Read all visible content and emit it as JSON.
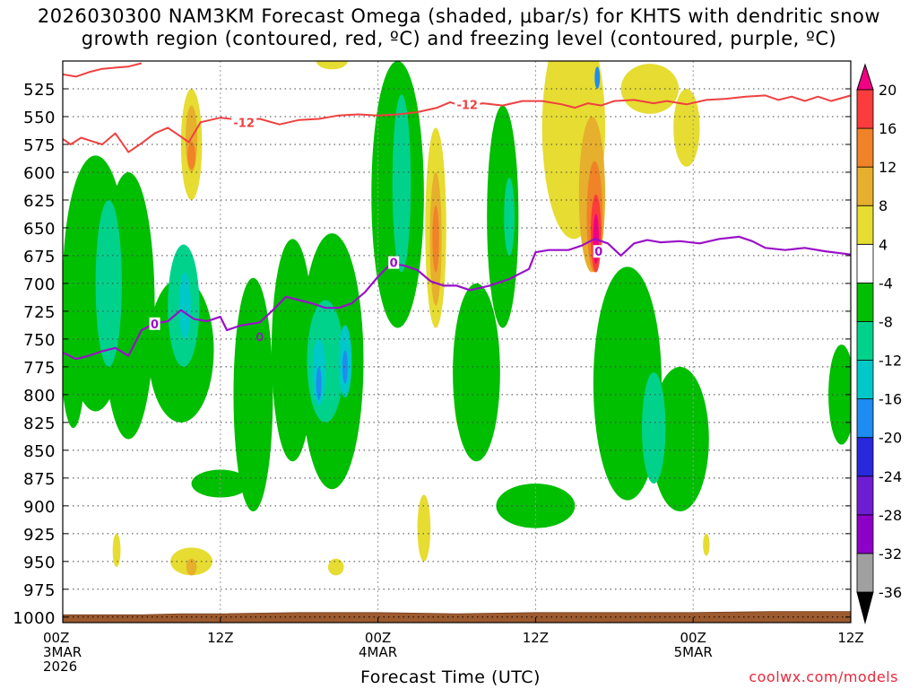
{
  "title": {
    "line1": "2026030300 NAM3KM Forecast Omega (shaded, μbar/s) for KHTS with dendritic snow",
    "line2": "growth region (contoured, red, ºC) and freezing level (contoured, purple, ºC)"
  },
  "credit": "coolwx.com/models",
  "chart_data": {
    "type": "heatmap",
    "xlabel": "Forecast Time (UTC)",
    "ylabel": "",
    "xlim_hours": [
      0,
      60
    ],
    "ylim_hPa": [
      500,
      1005
    ],
    "y_inverted": true,
    "grid": true,
    "y_ticks": [
      525,
      550,
      575,
      600,
      625,
      650,
      675,
      700,
      725,
      750,
      775,
      800,
      825,
      850,
      875,
      900,
      925,
      950,
      975,
      1000
    ],
    "x_ticks": [
      {
        "h": 0,
        "lines": [
          "00Z",
          "3MAR",
          "2026"
        ]
      },
      {
        "h": 12,
        "lines": [
          "12Z"
        ]
      },
      {
        "h": 24,
        "lines": [
          "00Z",
          "4MAR"
        ]
      },
      {
        "h": 36,
        "lines": [
          "12Z"
        ]
      },
      {
        "h": 48,
        "lines": [
          "00Z",
          "5MAR"
        ]
      },
      {
        "h": 60,
        "lines": [
          "12Z"
        ]
      }
    ],
    "colorbar": {
      "levels": [
        -36,
        -32,
        -28,
        -24,
        -20,
        -16,
        -12,
        -8,
        -4,
        4,
        8,
        12,
        16,
        20
      ],
      "colors": [
        "#000000",
        "#a0a0a0",
        "#8c00c8",
        "#6e1ed2",
        "#2828dc",
        "#1e8cf0",
        "#00c8c8",
        "#00d28c",
        "#00be00",
        "#ffffff",
        "#e6dc32",
        "#e6af2d",
        "#f08228",
        "#fa3c3c",
        "#f00082"
      ],
      "triangles": true
    },
    "omega_regions": [
      {
        "value": 4,
        "h": 9.8,
        "p": 575,
        "dh": 0.8,
        "dp": 100
      },
      {
        "value": 8,
        "h": 9.8,
        "p": 570,
        "dh": 0.45,
        "dp": 60
      },
      {
        "value": 12,
        "h": 9.8,
        "p": 585,
        "dh": 0.3,
        "dp": 25
      },
      {
        "value": 4,
        "h": 15.3,
        "p": 780,
        "dh": 0.5,
        "dp": 55
      },
      {
        "value": 8,
        "h": 15.3,
        "p": 785,
        "dh": 0.25,
        "dp": 30
      },
      {
        "value": 4,
        "h": 20.5,
        "p": 500,
        "dh": 1.2,
        "dp": 15
      },
      {
        "value": 4,
        "h": 28.4,
        "p": 650,
        "dh": 0.8,
        "dp": 180
      },
      {
        "value": 8,
        "h": 28.4,
        "p": 660,
        "dh": 0.45,
        "dp": 120
      },
      {
        "value": 12,
        "h": 28.4,
        "p": 660,
        "dh": 0.25,
        "dp": 60
      },
      {
        "value": 4,
        "h": 30.3,
        "p": 800,
        "dh": 0.5,
        "dp": 65
      },
      {
        "value": 8,
        "h": 30.3,
        "p": 810,
        "dh": 0.25,
        "dp": 35
      },
      {
        "value": 4,
        "h": 27.5,
        "p": 920,
        "dh": 0.5,
        "dp": 60
      },
      {
        "value": 4,
        "h": 38.9,
        "p": 560,
        "dh": 2.4,
        "dp": 200
      },
      {
        "value": 8,
        "h": 40.3,
        "p": 620,
        "dh": 1.0,
        "dp": 140
      },
      {
        "value": 12,
        "h": 40.5,
        "p": 640,
        "dh": 0.6,
        "dp": 100
      },
      {
        "value": 16,
        "h": 40.6,
        "p": 655,
        "dh": 0.4,
        "dp": 70
      },
      {
        "value": 20,
        "h": 40.6,
        "p": 660,
        "dh": 0.22,
        "dp": 45
      },
      {
        "value": 4,
        "h": 44.7,
        "p": 525,
        "dh": 2.2,
        "dp": 45
      },
      {
        "value": 4,
        "h": 47.5,
        "p": 560,
        "dh": 1.0,
        "dp": 70
      },
      {
        "value": 4,
        "h": 4.1,
        "p": 940,
        "dh": 0.3,
        "dp": 30
      },
      {
        "value": 4,
        "h": 9.8,
        "p": 950,
        "dh": 1.6,
        "dp": 25
      },
      {
        "value": 8,
        "h": 9.8,
        "p": 955,
        "dh": 0.4,
        "dp": 15
      },
      {
        "value": 4,
        "h": 20.8,
        "p": 955,
        "dh": 0.6,
        "dp": 15
      },
      {
        "value": 4,
        "h": 49.0,
        "p": 935,
        "dh": 0.25,
        "dp": 20
      },
      {
        "value": -4,
        "h": 2.5,
        "p": 700,
        "dh": 2.5,
        "dp": 230
      },
      {
        "value": -4,
        "h": 5.0,
        "p": 720,
        "dh": 2.0,
        "dp": 240
      },
      {
        "value": -4,
        "h": 9.0,
        "p": 760,
        "dh": 2.5,
        "dp": 130
      },
      {
        "value": -4,
        "h": 0.8,
        "p": 750,
        "dh": 1.0,
        "dp": 160
      },
      {
        "value": -4,
        "h": 14.5,
        "p": 800,
        "dh": 1.5,
        "dp": 210
      },
      {
        "value": -4,
        "h": 17.5,
        "p": 760,
        "dh": 1.6,
        "dp": 200
      },
      {
        "value": -4,
        "h": 20.5,
        "p": 770,
        "dh": 2.4,
        "dp": 230
      },
      {
        "value": -4,
        "h": 25.5,
        "p": 620,
        "dh": 2.0,
        "dp": 240
      },
      {
        "value": -4,
        "h": 31.5,
        "p": 780,
        "dh": 1.8,
        "dp": 160
      },
      {
        "value": -4,
        "h": 33.5,
        "p": 640,
        "dh": 1.2,
        "dp": 200
      },
      {
        "value": -4,
        "h": 36.0,
        "p": 900,
        "dh": 3.0,
        "dp": 40
      },
      {
        "value": -4,
        "h": 43.0,
        "p": 790,
        "dh": 2.6,
        "dp": 210
      },
      {
        "value": -4,
        "h": 47.0,
        "p": 840,
        "dh": 2.2,
        "dp": 130
      },
      {
        "value": -4,
        "h": 59.3,
        "p": 800,
        "dh": 1.0,
        "dp": 90
      },
      {
        "value": -4,
        "h": 12.0,
        "p": 880,
        "dh": 2.2,
        "dp": 25
      },
      {
        "value": -8,
        "h": 3.5,
        "p": 700,
        "dh": 1.0,
        "dp": 150
      },
      {
        "value": -8,
        "h": 9.2,
        "p": 720,
        "dh": 1.2,
        "dp": 110
      },
      {
        "value": -8,
        "h": 20.0,
        "p": 770,
        "dh": 1.4,
        "dp": 110
      },
      {
        "value": -8,
        "h": 25.8,
        "p": 610,
        "dh": 0.7,
        "dp": 160
      },
      {
        "value": -8,
        "h": 45.0,
        "p": 830,
        "dh": 0.9,
        "dp": 100
      },
      {
        "value": -8,
        "h": 34.0,
        "p": 640,
        "dh": 0.4,
        "dp": 70
      },
      {
        "value": -12,
        "h": 9.3,
        "p": 720,
        "dh": 0.45,
        "dp": 60
      },
      {
        "value": -12,
        "h": 19.5,
        "p": 780,
        "dh": 0.5,
        "dp": 60
      },
      {
        "value": -12,
        "h": 21.5,
        "p": 770,
        "dh": 0.5,
        "dp": 65
      },
      {
        "value": -16,
        "h": 19.5,
        "p": 790,
        "dh": 0.2,
        "dp": 30
      },
      {
        "value": -16,
        "h": 21.5,
        "p": 775,
        "dh": 0.2,
        "dp": 30
      },
      {
        "value": -16,
        "h": 40.7,
        "p": 515,
        "dh": 0.2,
        "dp": 20
      }
    ],
    "dendritic_growth_contour": {
      "label": "-12",
      "points": [
        [
          0,
          570
        ],
        [
          0.6,
          575
        ],
        [
          1.4,
          569
        ],
        [
          2.2,
          572
        ],
        [
          3.0,
          575
        ],
        [
          4.0,
          565
        ],
        [
          5.0,
          582
        ],
        [
          6.0,
          574
        ],
        [
          7.0,
          565
        ],
        [
          8.0,
          560
        ],
        [
          9.0,
          568
        ],
        [
          9.6,
          573
        ],
        [
          10.5,
          555
        ],
        [
          12.0,
          551
        ],
        [
          13.5,
          553
        ],
        [
          15.0,
          552
        ],
        [
          16.5,
          557
        ],
        [
          18.0,
          553
        ],
        [
          19.5,
          552
        ],
        [
          21.0,
          549
        ],
        [
          22.5,
          548
        ],
        [
          24.0,
          549
        ],
        [
          25.5,
          548
        ],
        [
          27.0,
          546
        ],
        [
          28.5,
          542
        ],
        [
          29.5,
          537
        ],
        [
          30.5,
          541
        ],
        [
          32.0,
          538
        ],
        [
          33.5,
          540
        ],
        [
          35.0,
          536
        ],
        [
          36.5,
          536
        ],
        [
          38.0,
          539
        ],
        [
          39.0,
          542
        ],
        [
          40.0,
          538
        ],
        [
          41.0,
          540
        ],
        [
          42.0,
          536
        ],
        [
          43.5,
          535
        ],
        [
          45.0,
          538
        ],
        [
          46.0,
          536
        ],
        [
          47.5,
          539
        ],
        [
          49.0,
          535
        ],
        [
          50.5,
          534
        ],
        [
          52.0,
          532
        ],
        [
          53.5,
          531
        ],
        [
          54.5,
          535
        ],
        [
          55.5,
          532
        ],
        [
          56.5,
          536
        ],
        [
          57.5,
          532
        ],
        [
          58.5,
          536
        ],
        [
          60.0,
          531
        ]
      ],
      "label_positions": [
        [
          13.8,
          556
        ],
        [
          30.8,
          540
        ]
      ]
    },
    "dendritic_growth_upper": {
      "points": [
        [
          0,
          512
        ],
        [
          1.0,
          514
        ],
        [
          2.0,
          510
        ],
        [
          3.0,
          507
        ],
        [
          4.0,
          506
        ],
        [
          5.0,
          505
        ],
        [
          6.0,
          502
        ]
      ]
    },
    "freezing_level_contour": {
      "label": "0",
      "points": [
        [
          0,
          762
        ],
        [
          1.0,
          768
        ],
        [
          2.0,
          765
        ],
        [
          3.0,
          761
        ],
        [
          4.0,
          758
        ],
        [
          5.0,
          765
        ],
        [
          6.0,
          742
        ],
        [
          7.0,
          736
        ],
        [
          8.0,
          734
        ],
        [
          9.0,
          724
        ],
        [
          10.0,
          732
        ],
        [
          11.0,
          734
        ],
        [
          12.0,
          730
        ],
        [
          12.5,
          742
        ],
        [
          13.5,
          738
        ],
        [
          15.0,
          735
        ],
        [
          16.0,
          724
        ],
        [
          17.0,
          712
        ],
        [
          18.0,
          715
        ],
        [
          19.0,
          718
        ],
        [
          20.0,
          722
        ],
        [
          21.0,
          722
        ],
        [
          22.0,
          718
        ],
        [
          23.0,
          708
        ],
        [
          24.0,
          694
        ],
        [
          25.0,
          682
        ],
        [
          26.0,
          684
        ],
        [
          27.0,
          688
        ],
        [
          28.0,
          698
        ],
        [
          29.0,
          702
        ],
        [
          30.0,
          702
        ],
        [
          31.0,
          706
        ],
        [
          32.5,
          702
        ],
        [
          34.0,
          696
        ],
        [
          35.5,
          687
        ],
        [
          36.0,
          672
        ],
        [
          37.0,
          670
        ],
        [
          38.5,
          670
        ],
        [
          39.5,
          666
        ],
        [
          40.5,
          660
        ],
        [
          41.5,
          664
        ],
        [
          42.5,
          675
        ],
        [
          43.5,
          664
        ],
        [
          44.5,
          661
        ],
        [
          45.5,
          663
        ],
        [
          47.0,
          662
        ],
        [
          48.5,
          664
        ],
        [
          50.0,
          660
        ],
        [
          51.5,
          658
        ],
        [
          52.5,
          662
        ],
        [
          53.5,
          668
        ],
        [
          55.0,
          670
        ],
        [
          56.5,
          668
        ],
        [
          58.0,
          671
        ],
        [
          60.0,
          674
        ]
      ],
      "label_positions": [
        [
          7.0,
          737
        ],
        [
          25.2,
          682
        ],
        [
          40.8,
          672
        ]
      ],
      "extra_label": [
        15.0,
        748
      ]
    },
    "terrain_surface": [
      [
        0,
        998
      ],
      [
        6,
        998
      ],
      [
        9,
        997
      ],
      [
        12,
        997
      ],
      [
        18,
        996
      ],
      [
        24,
        996
      ],
      [
        30,
        997
      ],
      [
        36,
        996
      ],
      [
        42,
        996
      ],
      [
        48,
        996
      ],
      [
        54,
        995
      ],
      [
        60,
        995
      ]
    ]
  }
}
